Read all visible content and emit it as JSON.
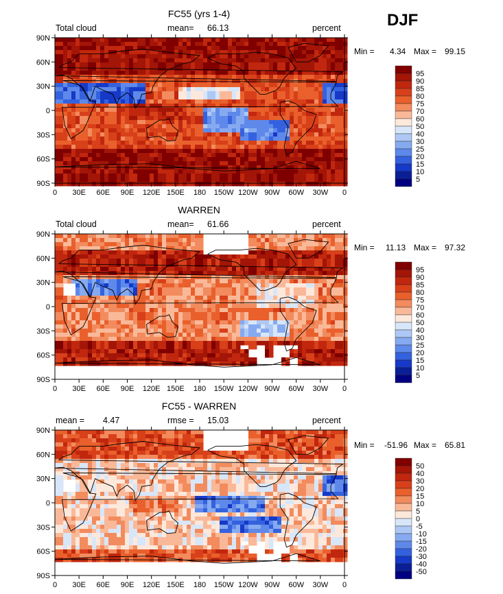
{
  "season": "DJF",
  "panels": [
    {
      "title": "FC55 (yrs 1-4)",
      "left_label": "Total cloud",
      "center_label": "mean=",
      "center_value": "66.13",
      "right_label": "percent",
      "min_label": "Min =",
      "min_value": "4.34",
      "max_label": "Max =",
      "max_value": "99.15",
      "colorbar": [
        "95",
        "90",
        "85",
        "80",
        "75",
        "70",
        "60",
        "50",
        "40",
        "30",
        "25",
        "20",
        "15",
        "10",
        "5"
      ]
    },
    {
      "title": "WARREN",
      "left_label": "Total cloud",
      "center_label": "mean=",
      "center_value": "61.66",
      "right_label": "percent",
      "min_label": "Min =",
      "min_value": "11.13",
      "max_label": "Max =",
      "max_value": "97.32",
      "colorbar": [
        "95",
        "90",
        "85",
        "80",
        "75",
        "70",
        "60",
        "50",
        "40",
        "30",
        "25",
        "20",
        "15",
        "10",
        "5"
      ]
    },
    {
      "title": "FC55 - WARREN",
      "left_label": "mean =",
      "left_value": "4.47",
      "center_label": "rmse =",
      "center_value": "15.03",
      "right_label": "percent",
      "min_label": "Min =",
      "min_value": "-51.96",
      "max_label": "Max =",
      "max_value": "65.81",
      "colorbar": [
        "50",
        "40",
        "30",
        "20",
        "15",
        "10",
        "5",
        "0",
        "-5",
        "-10",
        "-15",
        "-20",
        "-30",
        "-40",
        "-50"
      ]
    }
  ],
  "lat_ticks": [
    "90N",
    "60N",
    "30N",
    "0",
    "30S",
    "60S",
    "90S"
  ],
  "lon_ticks": [
    "0",
    "30E",
    "60E",
    "90E",
    "120E",
    "150E",
    "180",
    "150W",
    "120W",
    "90W",
    "60W",
    "30W",
    "0"
  ],
  "palette": [
    "#800000",
    "#a31507",
    "#c1270e",
    "#d8401a",
    "#e9602c",
    "#f28b5e",
    "#f9b999",
    "#fde8dc",
    "#d8e6f9",
    "#aec8f5",
    "#86aaf0",
    "#5e89ea",
    "#3462df",
    "#1639c8",
    "#0a1f96",
    "#000080"
  ]
}
